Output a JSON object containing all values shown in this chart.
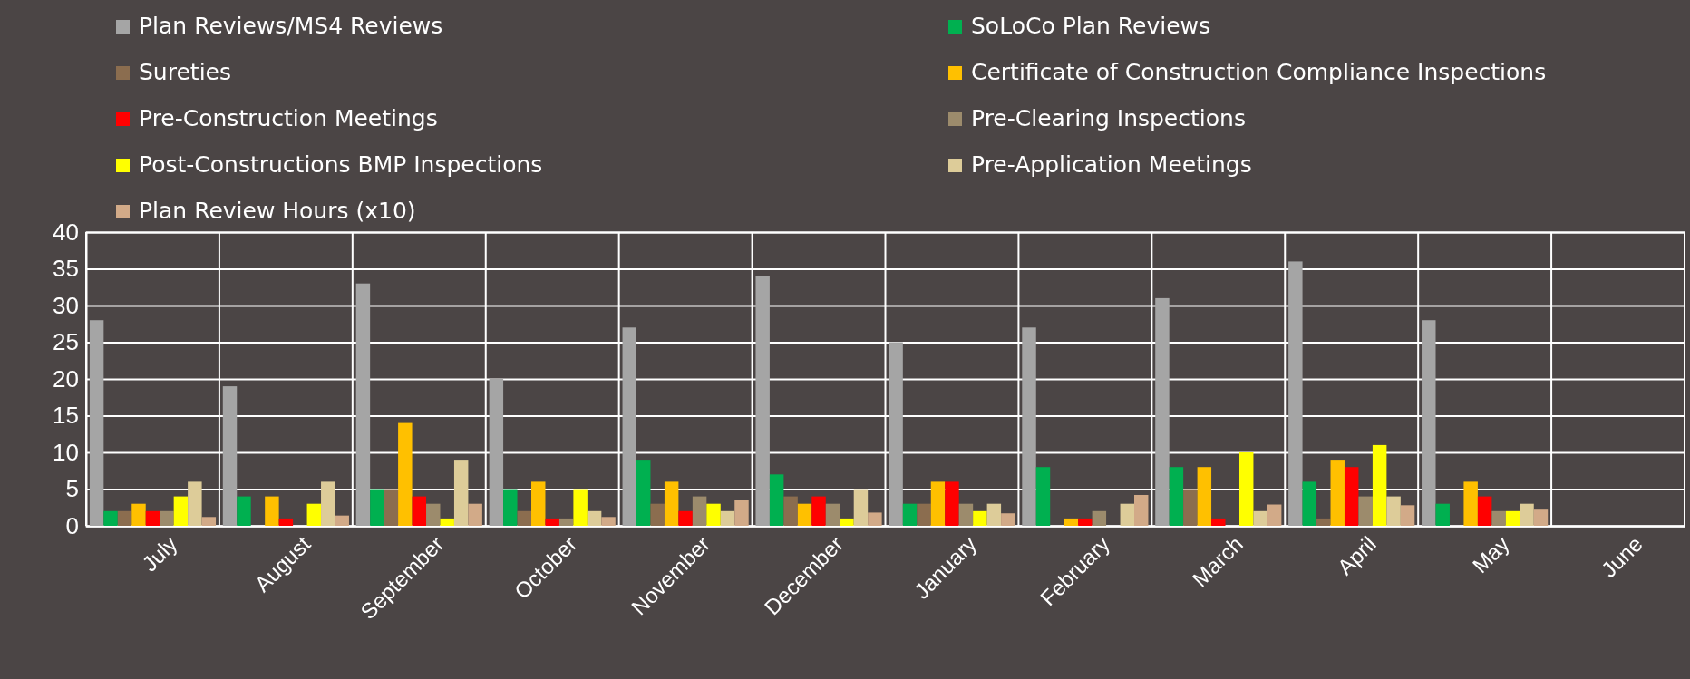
{
  "chart_data": {
    "type": "bar",
    "categories": [
      "July",
      "August",
      "September",
      "October",
      "November",
      "December",
      "January",
      "February",
      "March",
      "April",
      "May",
      "June"
    ],
    "series": [
      {
        "name": "Plan Reviews/MS4 Reviews",
        "color": "#a5a5a5",
        "values": [
          28,
          19,
          33,
          20,
          27,
          34,
          25,
          27,
          31,
          36,
          28,
          null
        ]
      },
      {
        "name": "SoLoCo Plan Reviews",
        "color": "#00b050",
        "values": [
          2,
          4,
          5,
          5,
          9,
          7,
          3,
          8,
          8,
          6,
          3,
          null
        ]
      },
      {
        "name": "Sureties",
        "color": "#8b6d4f",
        "values": [
          2,
          0,
          5,
          2,
          3,
          4,
          3,
          0,
          5,
          1,
          0,
          null
        ]
      },
      {
        "name": "Certificate of Construction Compliance Inspections",
        "color": "#ffc000",
        "values": [
          3,
          4,
          14,
          6,
          6,
          3,
          6,
          1,
          8,
          9,
          6,
          null
        ]
      },
      {
        "name": "Pre-Construction Meetings",
        "color": "#ff0000",
        "values": [
          2,
          1,
          4,
          1,
          2,
          4,
          6,
          1,
          1,
          8,
          4,
          null
        ]
      },
      {
        "name": "Pre-Clearing Inspections",
        "color": "#9c8b6c",
        "values": [
          2,
          0,
          3,
          1,
          4,
          3,
          3,
          2,
          0,
          4,
          2,
          null
        ]
      },
      {
        "name": "Post-Constructions BMP Inspections",
        "color": "#ffff00",
        "values": [
          4,
          3,
          1,
          5,
          3,
          1,
          2,
          0,
          10,
          11,
          2,
          null
        ]
      },
      {
        "name": "Pre-Application Meetings",
        "color": "#ddcc99",
        "values": [
          6,
          6,
          9,
          2,
          2,
          5,
          3,
          3,
          2,
          4,
          3,
          null
        ]
      },
      {
        "name": "Plan Review Hours (x10)",
        "color": "#d2aa88",
        "values": [
          1.2,
          1.4,
          3,
          1.2,
          3.5,
          1.8,
          1.7,
          4.2,
          2.9,
          2.8,
          2.2,
          null
        ]
      }
    ],
    "ylim": [
      0,
      40
    ],
    "yticks": [
      0,
      5,
      10,
      15,
      20,
      25,
      30,
      35,
      40
    ],
    "grid": true,
    "legend": "top"
  }
}
